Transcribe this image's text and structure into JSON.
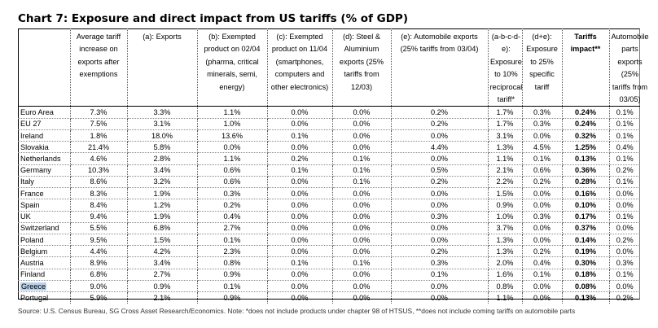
{
  "title": "Chart 7: Exposure and direct impact from US tariffs (% of GDP)",
  "chart_data": {
    "type": "table",
    "columns": [
      {
        "label": "Average tariff increase on exports after exemptions",
        "bold": false
      },
      {
        "label": "(a): Exports",
        "bold": false
      },
      {
        "label": "(b): Exempted product on 02/04 (pharma, critical minerals, semi, energy)",
        "bold": false
      },
      {
        "label": "(c): Exempted product on 11/04 (smartphones, computers and other electronics)",
        "bold": false
      },
      {
        "label": "(d): Steel & Aluminium exports (25% tariffs from 12/03)",
        "bold": false
      },
      {
        "label": "(e): Automobile exports (25% tariffs from 03/04)",
        "bold": false
      },
      {
        "label": "(a-b-c-d-e): Exposure to 10% reciprocal tariff*",
        "bold": false
      },
      {
        "label": "(d+e): Exposure to 25% specific tariff",
        "bold": false
      },
      {
        "label": "Tariffs impact**",
        "bold": true
      },
      {
        "label": "Automobile parts exports (25% tariffs from 03/05)",
        "bold": false
      }
    ],
    "rows": [
      {
        "country": "Euro Area",
        "values": [
          "7.3%",
          "3.3%",
          "1.1%",
          "0.0%",
          "0.0%",
          "0.2%",
          "1.7%",
          "0.3%",
          "0.24%",
          "0.1%"
        ]
      },
      {
        "country": "EU 27",
        "values": [
          "7.5%",
          "3.1%",
          "1.0%",
          "0.0%",
          "0.0%",
          "0.2%",
          "1.7%",
          "0.3%",
          "0.24%",
          "0.1%"
        ]
      },
      {
        "country": "Ireland",
        "values": [
          "1.8%",
          "18.0%",
          "13.6%",
          "0.1%",
          "0.0%",
          "0.0%",
          "3.1%",
          "0.0%",
          "0.32%",
          "0.1%"
        ]
      },
      {
        "country": "Slovakia",
        "values": [
          "21.4%",
          "5.8%",
          "0.0%",
          "0.0%",
          "0.0%",
          "4.4%",
          "1.3%",
          "4.5%",
          "1.25%",
          "0.4%"
        ]
      },
      {
        "country": "Netherlands",
        "values": [
          "4.6%",
          "2.8%",
          "1.1%",
          "0.2%",
          "0.1%",
          "0.0%",
          "1.1%",
          "0.1%",
          "0.13%",
          "0.1%"
        ]
      },
      {
        "country": "Germany",
        "values": [
          "10.3%",
          "3.4%",
          "0.6%",
          "0.1%",
          "0.1%",
          "0.5%",
          "2.1%",
          "0.6%",
          "0.36%",
          "0.2%"
        ]
      },
      {
        "country": "Italy",
        "values": [
          "8.6%",
          "3.2%",
          "0.6%",
          "0.0%",
          "0.1%",
          "0.2%",
          "2.2%",
          "0.2%",
          "0.28%",
          "0.1%"
        ]
      },
      {
        "country": "France",
        "values": [
          "8.3%",
          "1.9%",
          "0.3%",
          "0.0%",
          "0.0%",
          "0.0%",
          "1.5%",
          "0.0%",
          "0.16%",
          "0.0%"
        ]
      },
      {
        "country": "Spain",
        "values": [
          "8.4%",
          "1.2%",
          "0.2%",
          "0.0%",
          "0.0%",
          "0.0%",
          "0.9%",
          "0.0%",
          "0.10%",
          "0.0%"
        ]
      },
      {
        "country": "UK",
        "values": [
          "9.4%",
          "1.9%",
          "0.4%",
          "0.0%",
          "0.0%",
          "0.3%",
          "1.0%",
          "0.3%",
          "0.17%",
          "0.1%"
        ]
      },
      {
        "country": "Switzerland",
        "values": [
          "5.5%",
          "6.8%",
          "2.7%",
          "0.0%",
          "0.0%",
          "0.0%",
          "3.7%",
          "0.0%",
          "0.37%",
          "0.0%"
        ]
      },
      {
        "country": "Poland",
        "values": [
          "9.5%",
          "1.5%",
          "0.1%",
          "0.0%",
          "0.0%",
          "0.0%",
          "1.3%",
          "0.0%",
          "0.14%",
          "0.2%"
        ]
      },
      {
        "country": "Belgium",
        "values": [
          "4.4%",
          "4.2%",
          "2.3%",
          "0.0%",
          "0.0%",
          "0.2%",
          "1.3%",
          "0.2%",
          "0.19%",
          "0.0%"
        ]
      },
      {
        "country": "Austria",
        "values": [
          "8.9%",
          "3.4%",
          "0.8%",
          "0.1%",
          "0.1%",
          "0.3%",
          "2.0%",
          "0.4%",
          "0.30%",
          "0.3%"
        ]
      },
      {
        "country": "Finland",
        "values": [
          "6.8%",
          "2.7%",
          "0.9%",
          "0.0%",
          "0.0%",
          "0.1%",
          "1.6%",
          "0.1%",
          "0.18%",
          "0.1%"
        ]
      },
      {
        "country": "Greece",
        "values": [
          "9.0%",
          "0.9%",
          "0.1%",
          "0.0%",
          "0.0%",
          "0.0%",
          "0.8%",
          "0.0%",
          "0.08%",
          "0.0%"
        ],
        "highlighted": true
      },
      {
        "country": "Portugal",
        "values": [
          "5.9%",
          "2.1%",
          "0.9%",
          "0.0%",
          "0.0%",
          "0.0%",
          "1.1%",
          "0.0%",
          "0.13%",
          "0.2%"
        ]
      }
    ]
  },
  "highlight_color": "#b9d1ea",
  "source": "Source: U.S. Census Bureau, SG Cross Asset Research/Economics. Note: *does not include products under chapter 98 of HTSUS, **does not include coming tariffs on automobile parts"
}
